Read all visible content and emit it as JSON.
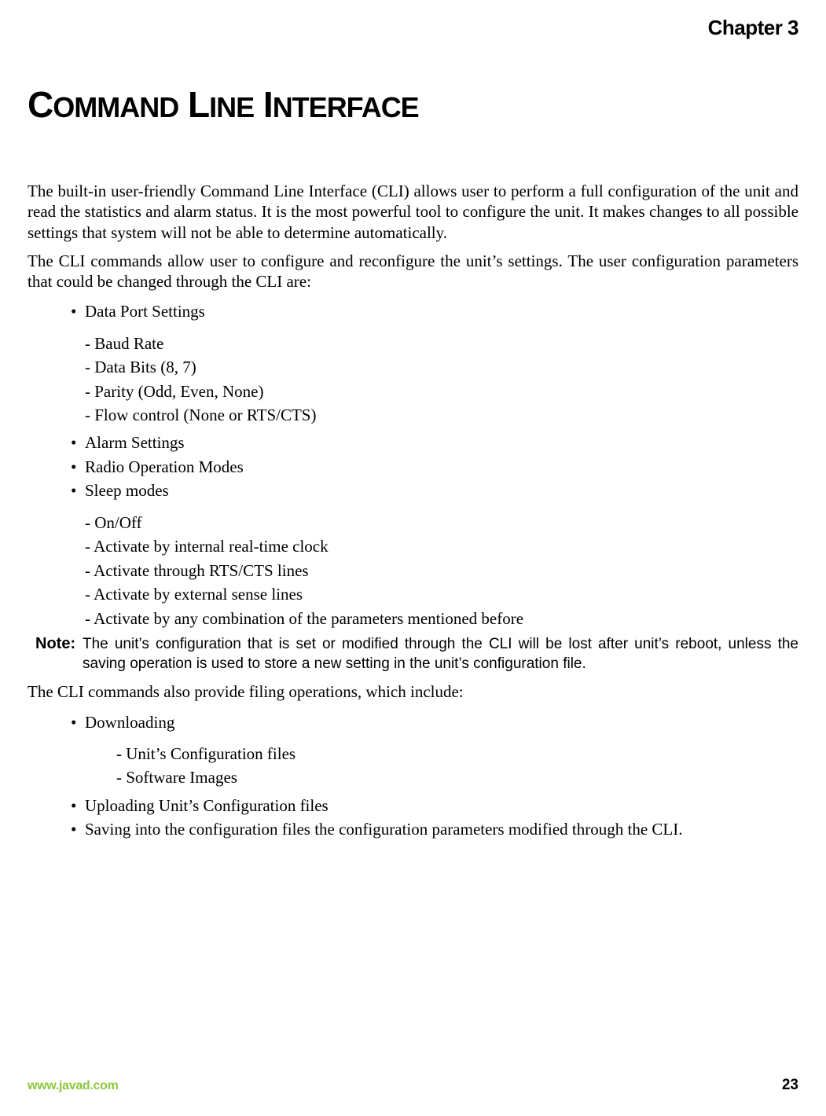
{
  "chapter_label": "Chapter 3",
  "title_html": "<span class='big'>C</span><span class='small'>OMMAND</span> <span class='big'>L</span><span class='small'>INE</span> <span class='big'>I</span><span class='small'>NTERFACE</span>",
  "para1": "The built-in user-friendly Command Line Interface (CLI) allows user to perform a full configuration of the unit and read the statistics and alarm status. It is the most powerful tool to configure the unit. It makes changes to all possible settings that system will not be able to determine automatically.",
  "para2": "The CLI commands allow user to configure and reconfigure the unit’s settings. The user configuration parameters that could be changed through the CLI are:",
  "list1": {
    "item0": "Data Port Settings",
    "item0_sub0": "- Baud Rate",
    "item0_sub1": "- Data Bits (8, 7)",
    "item0_sub2": "- Parity (Odd, Even, None)",
    "item0_sub3": "- Flow control (None or RTS/CTS)",
    "item1": "Alarm Settings",
    "item2": "Radio Operation Modes",
    "item3": "Sleep modes",
    "item3_sub0": "- On/Off",
    "item3_sub1": "- Activate by internal real-time clock",
    "item3_sub2": "- Activate through RTS/CTS lines",
    "item3_sub3": "- Activate by external sense lines",
    "item3_sub4": "- Activate by any combination of the parameters mentioned before"
  },
  "note_label": "Note:",
  "note_text": "The unit’s configuration that is set or modified through the CLI will be lost after unit’s reboot, unless the saving operation is used to store a new setting in the unit’s configuration file.",
  "para3": "The CLI commands also provide filing operations, which include:",
  "list2": {
    "item0": "Downloading",
    "item0_sub0": "- Unit’s Configuration files",
    "item0_sub1": "- Software Images",
    "item1": "Uploading Unit’s Configuration files",
    "item2": "Saving into the configuration files the configuration parameters modified through the CLI."
  },
  "footer": {
    "url": "www.javad.com",
    "url_color": "#8cc63f",
    "page": "23"
  }
}
